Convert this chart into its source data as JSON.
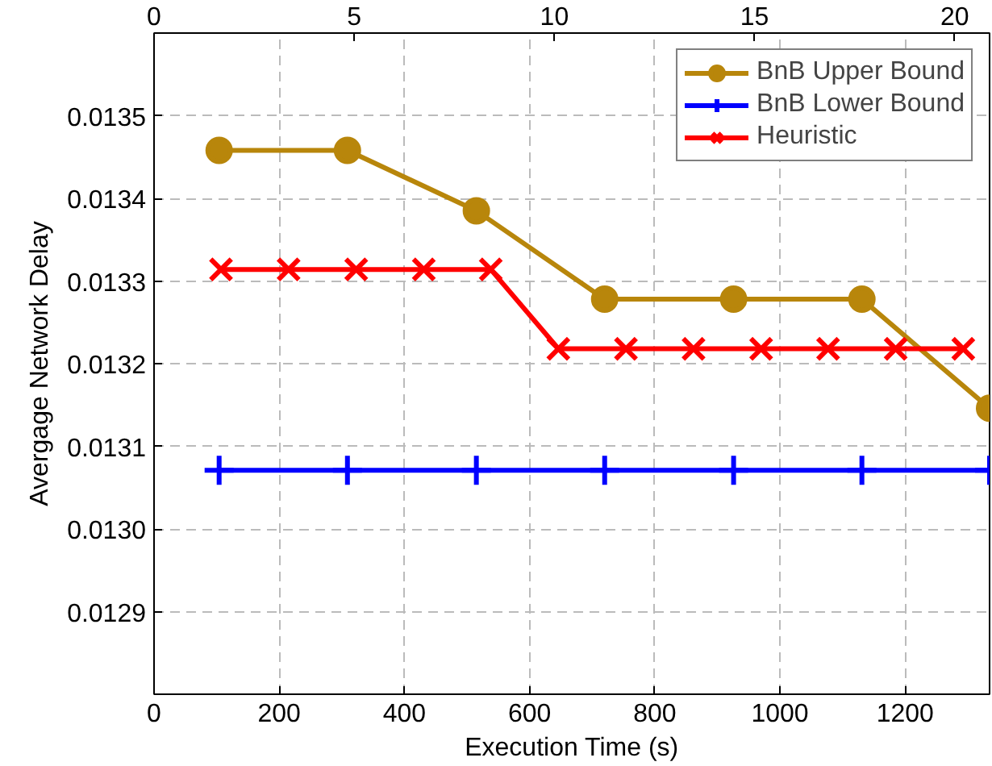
{
  "chart_data": {
    "type": "line",
    "xlabel": "Execution Time (s)",
    "ylabel": "Avergage Network Delay",
    "xlim": [
      0,
      1335
    ],
    "xticks": [
      0,
      200,
      400,
      600,
      800,
      1000,
      1200
    ],
    "x2lim": [
      0,
      20.87
    ],
    "x2ticks": [
      0,
      5,
      10,
      15,
      20
    ],
    "ylim": [
      0.0128,
      0.0136
    ],
    "yticks": [
      {
        "value": 0.0128,
        "label": null
      },
      {
        "value": 0.0129,
        "label": "0.0129"
      },
      {
        "value": 0.013,
        "label": "0.0130"
      },
      {
        "value": 0.0131,
        "label": "0.0131"
      },
      {
        "value": 0.0132,
        "label": "0.0132"
      },
      {
        "value": 0.0133,
        "label": "0.0133"
      },
      {
        "value": 0.0134,
        "label": "0.0134"
      },
      {
        "value": 0.0135,
        "label": "0.0135"
      }
    ],
    "grid": true,
    "legend": "top right",
    "series": [
      {
        "name": "BnB Upper Bound",
        "color": "#b8860b",
        "marker": "circle",
        "x": [
          104,
          309,
          515,
          720,
          926,
          1131,
          1335
        ],
        "values": [
          0.013458,
          0.013458,
          0.013385,
          0.013278,
          0.013278,
          0.013278,
          0.013146
        ]
      },
      {
        "name": "BnB Lower Bound",
        "color": "#0000ff",
        "marker": "cross",
        "x": [
          104,
          309,
          515,
          720,
          926,
          1131,
          1335
        ],
        "values": [
          0.013071,
          0.013071,
          0.013071,
          0.013071,
          0.013071,
          0.013071,
          0.013071
        ]
      },
      {
        "name": "Heuristic",
        "color": "#ff0000",
        "marker": "x",
        "x": [
          107,
          215,
          323,
          431,
          538,
          646,
          754,
          862,
          970,
          1077,
          1185,
          1293
        ],
        "values": [
          0.013314,
          0.013314,
          0.013314,
          0.013314,
          0.013314,
          0.013218,
          0.013218,
          0.013218,
          0.013218,
          0.013218,
          0.013218,
          0.013218
        ]
      }
    ]
  }
}
